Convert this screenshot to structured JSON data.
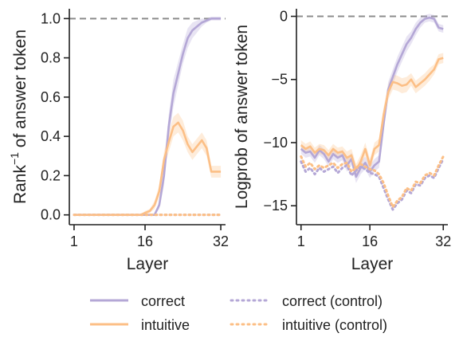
{
  "chart_data": [
    {
      "type": "line",
      "ylabel_pre": "Rank",
      "ylabel_sup": "−1",
      "ylabel_post": " of answer token",
      "xlabel": "Layer",
      "xlim": [
        0,
        33
      ],
      "ylim": [
        -0.05,
        1.05
      ],
      "xticks": [
        1,
        16,
        32
      ],
      "xtick_labels": [
        "1",
        "16",
        "32"
      ],
      "yticks": [
        0,
        0.2,
        0.4,
        0.6,
        0.8,
        1.0
      ],
      "ytick_labels": [
        "0.0",
        "0.2",
        "0.4",
        "0.6",
        "0.8",
        "1.0"
      ],
      "reference_line": 1.0,
      "x": [
        1,
        2,
        3,
        4,
        5,
        6,
        7,
        8,
        9,
        10,
        11,
        12,
        13,
        14,
        15,
        16,
        17,
        18,
        19,
        20,
        21,
        22,
        23,
        24,
        25,
        26,
        27,
        28,
        29,
        30,
        31,
        32
      ],
      "series": [
        {
          "name": "correct",
          "style": "solid",
          "color": "#b4a7d6",
          "values": [
            0,
            0,
            0,
            0,
            0,
            0,
            0,
            0,
            0,
            0,
            0,
            0,
            0,
            0,
            0,
            0,
            0,
            0,
            0.05,
            0.2,
            0.45,
            0.62,
            0.72,
            0.82,
            0.9,
            0.94,
            0.96,
            0.98,
            0.99,
            1.0,
            1.0,
            1.0
          ],
          "band": [
            0,
            0,
            0,
            0,
            0,
            0,
            0,
            0,
            0,
            0,
            0,
            0,
            0,
            0,
            0,
            0,
            0,
            0,
            0.02,
            0.05,
            0.06,
            0.07,
            0.06,
            0.05,
            0.05,
            0.04,
            0.03,
            0.02,
            0.01,
            0.01,
            0.01,
            0.01
          ]
        },
        {
          "name": "intuitive",
          "style": "solid",
          "color": "#fcbf86",
          "values": [
            0,
            0,
            0,
            0,
            0,
            0,
            0,
            0,
            0,
            0,
            0,
            0,
            0,
            0,
            0,
            0.01,
            0.02,
            0.05,
            0.12,
            0.28,
            0.37,
            0.45,
            0.47,
            0.43,
            0.36,
            0.32,
            0.35,
            0.38,
            0.34,
            0.22,
            0.22,
            0.22
          ],
          "band": [
            0,
            0,
            0,
            0,
            0,
            0,
            0,
            0,
            0,
            0,
            0,
            0,
            0,
            0,
            0,
            0.01,
            0.01,
            0.02,
            0.03,
            0.04,
            0.05,
            0.05,
            0.05,
            0.05,
            0.04,
            0.04,
            0.04,
            0.04,
            0.04,
            0.03,
            0.03,
            0.03
          ]
        },
        {
          "name": "correct (control)",
          "style": "dotted",
          "color": "#b4a7d6",
          "values": [
            0,
            0,
            0,
            0,
            0,
            0,
            0,
            0,
            0,
            0,
            0,
            0,
            0,
            0,
            0,
            0,
            0,
            0,
            0,
            0,
            0,
            0,
            0,
            0,
            0,
            0,
            0,
            0,
            0,
            0,
            0,
            0
          ]
        },
        {
          "name": "intuitive (control)",
          "style": "dotted",
          "color": "#fcbf86",
          "values": [
            0,
            0,
            0,
            0,
            0,
            0,
            0,
            0,
            0,
            0,
            0,
            0,
            0,
            0,
            0,
            0,
            0,
            0,
            0,
            0,
            0,
            0,
            0,
            0,
            0,
            0,
            0,
            0,
            0,
            0,
            0,
            0
          ]
        }
      ]
    },
    {
      "type": "line",
      "ylabel": "Logprob of answer token",
      "xlabel": "Layer",
      "xlim": [
        0,
        33
      ],
      "ylim": [
        -16.5,
        0.6
      ],
      "xticks": [
        1,
        16,
        32
      ],
      "xtick_labels": [
        "1",
        "16",
        "32"
      ],
      "yticks": [
        0,
        -5,
        -10,
        -15
      ],
      "ytick_labels": [
        "0",
        "−5",
        "−10",
        "−15"
      ],
      "reference_line": 0,
      "x": [
        1,
        2,
        3,
        4,
        5,
        6,
        7,
        8,
        9,
        10,
        11,
        12,
        13,
        14,
        15,
        16,
        17,
        18,
        19,
        20,
        21,
        22,
        23,
        24,
        25,
        26,
        27,
        28,
        29,
        30,
        31,
        32
      ],
      "series": [
        {
          "name": "correct",
          "style": "solid",
          "color": "#b4a7d6",
          "values": [
            -10.5,
            -10.8,
            -10.7,
            -11.2,
            -10.6,
            -10.9,
            -11.5,
            -10.9,
            -11.2,
            -11.0,
            -11.8,
            -11.3,
            -12.7,
            -12.0,
            -11.6,
            -12.3,
            -11.8,
            -11.5,
            -8.5,
            -5.8,
            -4.8,
            -3.8,
            -3.0,
            -2.2,
            -1.7,
            -1.0,
            -0.5,
            -0.2,
            -0.1,
            -0.2,
            -0.9,
            -1.0
          ],
          "band": [
            0.4,
            0.4,
            0.4,
            0.4,
            0.4,
            0.4,
            0.4,
            0.4,
            0.4,
            0.4,
            0.5,
            0.5,
            0.5,
            0.5,
            0.5,
            0.5,
            0.5,
            0.5,
            0.6,
            0.6,
            0.6,
            0.6,
            0.6,
            0.6,
            0.5,
            0.5,
            0.4,
            0.3,
            0.3,
            0.3,
            0.3,
            0.3
          ]
        },
        {
          "name": "intuitive",
          "style": "solid",
          "color": "#fcbf86",
          "values": [
            -10.2,
            -10.5,
            -10.3,
            -10.8,
            -10.5,
            -10.6,
            -11.0,
            -10.5,
            -10.8,
            -10.7,
            -11.2,
            -11.0,
            -12.2,
            -11.5,
            -10.5,
            -11.8,
            -10.5,
            -10.2,
            -7.8,
            -6.0,
            -5.2,
            -5.3,
            -5.5,
            -5.4,
            -5.0,
            -5.6,
            -5.3,
            -5.0,
            -4.6,
            -4.2,
            -3.4,
            -3.3
          ],
          "band": [
            0.4,
            0.4,
            0.4,
            0.4,
            0.4,
            0.4,
            0.4,
            0.4,
            0.4,
            0.4,
            0.5,
            0.5,
            0.5,
            0.5,
            0.5,
            0.5,
            0.5,
            0.5,
            0.6,
            0.6,
            0.6,
            0.6,
            0.6,
            0.6,
            0.5,
            0.5,
            0.5,
            0.5,
            0.5,
            0.4,
            0.4,
            0.4
          ]
        },
        {
          "name": "correct (control)",
          "style": "dotted",
          "color": "#b4a7d6",
          "values": [
            -11.5,
            -12.3,
            -12.0,
            -12.5,
            -12.0,
            -12.3,
            -12.1,
            -11.9,
            -12.4,
            -12.0,
            -11.8,
            -12.6,
            -12.2,
            -11.9,
            -12.1,
            -12.4,
            -12.5,
            -12.7,
            -13.6,
            -14.5,
            -15.3,
            -14.8,
            -14.5,
            -13.8,
            -14.0,
            -13.3,
            -13.4,
            -12.8,
            -12.6,
            -12.8,
            -12.0,
            -11.3
          ]
        },
        {
          "name": "intuitive (control)",
          "style": "dotted",
          "color": "#fcbf86",
          "values": [
            -11.1,
            -11.9,
            -11.6,
            -12.1,
            -11.8,
            -12.0,
            -11.8,
            -11.6,
            -12.0,
            -11.7,
            -11.6,
            -12.3,
            -12.0,
            -11.7,
            -11.9,
            -12.1,
            -12.2,
            -12.5,
            -13.2,
            -14.2,
            -15.1,
            -14.6,
            -14.3,
            -13.6,
            -13.8,
            -13.1,
            -13.2,
            -12.6,
            -12.4,
            -12.6,
            -11.8,
            -11.1
          ]
        }
      ]
    }
  ],
  "legend": {
    "placement": "bottom",
    "items": [
      {
        "label": "correct",
        "style": "solid",
        "color": "#b4a7d6"
      },
      {
        "label": "intuitive",
        "style": "solid",
        "color": "#fcbf86"
      },
      {
        "label": "correct (control)",
        "style": "dotted",
        "color": "#b4a7d6"
      },
      {
        "label": "intuitive (control)",
        "style": "dotted",
        "color": "#fcbf86"
      }
    ]
  }
}
